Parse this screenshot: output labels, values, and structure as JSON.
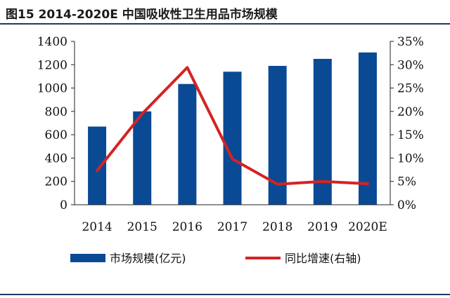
{
  "figure_title": "图15 2014-2020E 中国吸收性卫生用品市场规模",
  "colors": {
    "bar": "#0a4a94",
    "line": "#d42323",
    "rule": "#1f3a63"
  },
  "chart_data": {
    "type": "bar",
    "title": "图15 2014-2020E 中国吸收性卫生用品市场规模",
    "categories": [
      "2014",
      "2015",
      "2016",
      "2017",
      "2018",
      "2019",
      "2020E"
    ],
    "series": [
      {
        "name": "市场规模(亿元)",
        "type": "bar",
        "axis": "left",
        "values": [
          670,
          800,
          1035,
          1140,
          1190,
          1250,
          1305
        ]
      },
      {
        "name": "同比增速(右轴)",
        "type": "line",
        "axis": "right",
        "values": [
          0.073,
          0.195,
          0.294,
          0.098,
          0.044,
          0.05,
          0.045
        ]
      }
    ],
    "ylim_left": [
      0,
      1400
    ],
    "yticks_left": [
      "0",
      "200",
      "400",
      "600",
      "800",
      "1000",
      "1200",
      "1400"
    ],
    "ylim_right": [
      0,
      0.35
    ],
    "yticks_right": [
      "0%",
      "5%",
      "10%",
      "15%",
      "20%",
      "25%",
      "30%",
      "35%"
    ],
    "grid": false,
    "legend_position": "bottom"
  }
}
